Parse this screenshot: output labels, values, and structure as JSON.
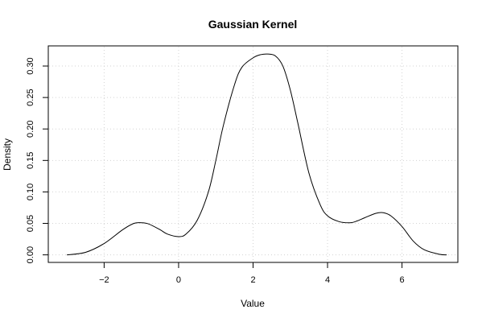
{
  "chart_data": {
    "type": "line",
    "title": "Gaussian Kernel",
    "xlabel": "Value",
    "ylabel": "Density",
    "xlim": [
      -3.5,
      7.5
    ],
    "ylim": [
      -0.012,
      0.332
    ],
    "grid": true,
    "x_ticks": [
      -2,
      0,
      2,
      4,
      6
    ],
    "x_tick_labels": [
      "−2",
      "0",
      "2",
      "4",
      "6"
    ],
    "y_ticks": [
      0.0,
      0.05,
      0.1,
      0.15,
      0.2,
      0.25,
      0.3
    ],
    "y_tick_labels": [
      "0.00",
      "0.05",
      "0.10",
      "0.15",
      "0.20",
      "0.25",
      "0.30"
    ],
    "series": [
      {
        "x": [
          -3.0,
          -2.5,
          -2.0,
          -1.5,
          -1.2,
          -1.0,
          -0.8,
          -0.5,
          -0.3,
          0.0,
          0.2,
          0.5,
          0.8,
          1.0,
          1.2,
          1.5,
          1.7,
          2.0,
          2.2,
          2.4,
          2.6,
          2.8,
          3.0,
          3.2,
          3.5,
          3.8,
          4.0,
          4.3,
          4.6,
          4.8,
          5.0,
          5.3,
          5.5,
          5.7,
          6.0,
          6.3,
          6.6,
          7.0,
          7.2
        ],
        "y": [
          0.0,
          0.004,
          0.018,
          0.04,
          0.05,
          0.051,
          0.049,
          0.04,
          0.033,
          0.029,
          0.033,
          0.055,
          0.1,
          0.15,
          0.205,
          0.27,
          0.298,
          0.313,
          0.318,
          0.319,
          0.316,
          0.3,
          0.262,
          0.21,
          0.13,
          0.08,
          0.062,
          0.053,
          0.051,
          0.054,
          0.059,
          0.066,
          0.067,
          0.062,
          0.045,
          0.022,
          0.008,
          0.001,
          0.0
        ],
        "color": "#000000"
      }
    ]
  }
}
